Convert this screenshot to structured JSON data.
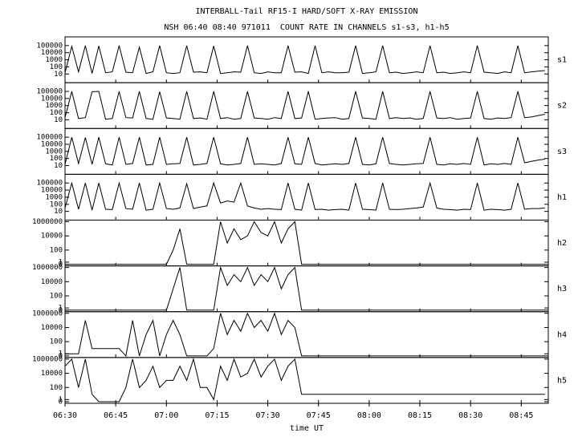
{
  "chart_data": {
    "type": "line",
    "title": "INTERBALL-Tail RF15-I HARD/SOFT X-RAY EMISSION",
    "subtitle": "NSH 06:40 08:40 971011  COUNT RATE IN CHANNELS s1-s3, h1-h5",
    "xlabel": "time UT",
    "color": "#000000",
    "xlim": [
      "06:30",
      "08:53"
    ],
    "xticks": [
      "06:30",
      "06:45",
      "07:00",
      "07:15",
      "07:30",
      "07:45",
      "08:00",
      "08:15",
      "08:30",
      "08:45"
    ],
    "x": [
      "06:30",
      "06:32",
      "06:34",
      "06:36",
      "06:38",
      "06:40",
      "06:42",
      "06:44",
      "06:46",
      "06:48",
      "06:50",
      "06:52",
      "06:54",
      "06:56",
      "06:58",
      "07:00",
      "07:02",
      "07:04",
      "07:06",
      "07:08",
      "07:10",
      "07:12",
      "07:14",
      "07:16",
      "07:18",
      "07:20",
      "07:22",
      "07:24",
      "07:26",
      "07:28",
      "07:30",
      "07:32",
      "07:34",
      "07:36",
      "07:38",
      "07:40",
      "07:42",
      "07:44",
      "07:46",
      "07:48",
      "07:50",
      "07:52",
      "07:54",
      "07:56",
      "07:58",
      "08:00",
      "08:02",
      "08:04",
      "08:06",
      "08:08",
      "08:10",
      "08:12",
      "08:14",
      "08:16",
      "08:18",
      "08:20",
      "08:22",
      "08:24",
      "08:26",
      "08:28",
      "08:30",
      "08:32",
      "08:34",
      "08:36",
      "08:38",
      "08:40",
      "08:42",
      "08:44",
      "08:46",
      "08:48",
      "08:50",
      "08:52"
    ],
    "panels": [
      {
        "name": "s1",
        "scale": "log",
        "ylim": [
          1,
          1000000
        ],
        "yticks": [
          10,
          100,
          1000,
          10000,
          100000
        ],
        "values": [
          15,
          80000,
          20,
          100000,
          12,
          90000,
          15,
          20,
          100000,
          18,
          15,
          60000,
          12,
          20,
          100000,
          15,
          12,
          15,
          100000,
          18,
          20,
          15,
          90000,
          12,
          15,
          20,
          18,
          100000,
          15,
          12,
          20,
          15,
          15,
          100000,
          18,
          20,
          12,
          100000,
          15,
          20,
          15,
          15,
          18,
          100000,
          12,
          15,
          20,
          100000,
          15,
          18,
          12,
          15,
          20,
          15,
          100000,
          15,
          18,
          12,
          15,
          20,
          15,
          100000,
          18,
          15,
          12,
          20,
          15,
          100000,
          15,
          20,
          25,
          30
        ]
      },
      {
        "name": "s2",
        "scale": "log",
        "ylim": [
          1,
          1000000
        ],
        "yticks": [
          10,
          100,
          1000,
          10000,
          100000
        ],
        "values": [
          20,
          100000,
          15,
          20,
          90000,
          100000,
          12,
          15,
          100000,
          20,
          18,
          100000,
          15,
          12,
          90000,
          18,
          15,
          12,
          100000,
          15,
          18,
          12,
          100000,
          15,
          20,
          12,
          15,
          100000,
          18,
          15,
          12,
          20,
          15,
          100000,
          15,
          18,
          100000,
          12,
          15,
          18,
          20,
          12,
          15,
          100000,
          18,
          15,
          12,
          100000,
          15,
          20,
          15,
          18,
          12,
          15,
          100000,
          18,
          15,
          20,
          12,
          15,
          18,
          100000,
          15,
          12,
          18,
          15,
          20,
          100000,
          20,
          25,
          40,
          60
        ]
      },
      {
        "name": "s3",
        "scale": "log",
        "ylim": [
          1,
          1000000
        ],
        "yticks": [
          10,
          100,
          1000,
          10000,
          100000
        ],
        "values": [
          15,
          100000,
          20,
          90000,
          15,
          100000,
          18,
          12,
          100000,
          15,
          20,
          100000,
          12,
          15,
          100000,
          15,
          18,
          20,
          100000,
          12,
          15,
          20,
          100000,
          18,
          12,
          15,
          20,
          100000,
          15,
          18,
          15,
          12,
          20,
          100000,
          18,
          15,
          100000,
          20,
          12,
          15,
          18,
          15,
          20,
          100000,
          15,
          12,
          18,
          100000,
          20,
          15,
          12,
          15,
          18,
          20,
          100000,
          15,
          12,
          18,
          15,
          20,
          15,
          100000,
          12,
          18,
          15,
          20,
          15,
          100000,
          25,
          40,
          60,
          80
        ]
      },
      {
        "name": "h1",
        "scale": "log",
        "ylim": [
          1,
          1000000
        ],
        "yticks": [
          10,
          100,
          1000,
          10000,
          100000
        ],
        "values": [
          30,
          100000,
          20,
          100000,
          15,
          100000,
          20,
          18,
          100000,
          25,
          20,
          100000,
          15,
          20,
          100000,
          25,
          20,
          30,
          80000,
          25,
          40,
          60,
          100000,
          150,
          300,
          200,
          100000,
          60,
          30,
          20,
          25,
          20,
          18,
          100000,
          20,
          15,
          100000,
          18,
          20,
          15,
          18,
          20,
          15,
          100000,
          20,
          18,
          15,
          100000,
          20,
          18,
          20,
          25,
          30,
          40,
          100000,
          30,
          20,
          18,
          15,
          20,
          18,
          100000,
          15,
          20,
          18,
          15,
          20,
          100000,
          20,
          25,
          25,
          30
        ]
      },
      {
        "name": "h2",
        "scale": "log1p",
        "ylim": [
          0,
          1000000
        ],
        "yticks": [
          0,
          1,
          100,
          10000,
          1000000
        ],
        "values": [
          0,
          0,
          0,
          0,
          0,
          0,
          0,
          0,
          0,
          0,
          0,
          0,
          0,
          0,
          0,
          0,
          100,
          100000,
          0,
          0,
          0,
          0,
          0,
          1000000,
          1000,
          100000,
          3000,
          10000,
          1000000,
          30000,
          10000,
          1000000,
          1000,
          100000,
          1000000,
          0,
          0,
          0,
          0,
          0,
          0,
          0,
          0,
          0,
          0,
          0,
          0,
          0,
          0,
          0,
          0,
          0,
          0,
          0,
          0,
          0,
          0,
          0,
          0,
          0,
          0,
          0,
          0,
          0,
          0,
          0,
          0,
          0,
          0,
          0,
          0,
          0
        ]
      },
      {
        "name": "h3",
        "scale": "log1p",
        "ylim": [
          0,
          1000000
        ],
        "yticks": [
          0,
          1,
          100,
          10000,
          1000000
        ],
        "values": [
          0,
          0,
          0,
          0,
          0,
          0,
          0,
          0,
          0,
          0,
          0,
          0,
          0,
          0,
          0,
          0,
          1000,
          1000000,
          0,
          0,
          0,
          0,
          0,
          1000000,
          3000,
          100000,
          10000,
          1000000,
          3000,
          100000,
          10000,
          1000000,
          1000,
          100000,
          1000000,
          0,
          0,
          0,
          0,
          0,
          0,
          0,
          0,
          0,
          0,
          0,
          0,
          0,
          0,
          0,
          0,
          0,
          0,
          0,
          0,
          0,
          0,
          0,
          0,
          0,
          0,
          0,
          0,
          0,
          0,
          0,
          0,
          0,
          0,
          0,
          0,
          0
        ]
      },
      {
        "name": "h4",
        "scale": "log1p",
        "ylim": [
          0,
          1000000
        ],
        "yticks": [
          0,
          1,
          100,
          10000,
          1000000
        ],
        "values": [
          1,
          1,
          1,
          100000,
          10,
          10,
          10,
          10,
          10,
          0,
          100000,
          0,
          1000,
          100000,
          0,
          1000,
          100000,
          1000,
          0,
          0,
          0,
          0,
          10,
          1000000,
          1000,
          100000,
          3000,
          1000000,
          10000,
          100000,
          3000,
          1000000,
          1000,
          100000,
          10000,
          0,
          0,
          0,
          0,
          0,
          0,
          0,
          0,
          0,
          0,
          0,
          0,
          0,
          0,
          0,
          0,
          0,
          0,
          0,
          0,
          0,
          0,
          0,
          0,
          0,
          0,
          0,
          0,
          0,
          0,
          0,
          0,
          0,
          0,
          0,
          0,
          0
        ]
      },
      {
        "name": "h5",
        "scale": "log1p",
        "ylim": [
          0,
          1000000
        ],
        "yticks": [
          0,
          1,
          100,
          10000,
          1000000
        ],
        "values": [
          100000,
          1000000,
          100,
          1000000,
          10,
          0,
          0,
          0,
          0,
          100,
          1000000,
          100,
          1000,
          100000,
          100,
          1000,
          1000,
          100000,
          1000,
          1000000,
          100,
          100,
          1,
          100000,
          1000,
          1000000,
          3000,
          10000,
          1000000,
          3000,
          100000,
          1000000,
          1000,
          100000,
          1000000,
          10,
          10,
          10,
          10,
          10,
          10,
          10,
          10,
          10,
          10,
          10,
          10,
          10,
          10,
          10,
          10,
          10,
          10,
          10,
          10,
          10,
          10,
          10,
          10,
          10,
          10,
          10,
          10,
          10,
          10,
          10,
          10,
          10,
          10,
          10,
          10,
          10
        ]
      }
    ]
  }
}
